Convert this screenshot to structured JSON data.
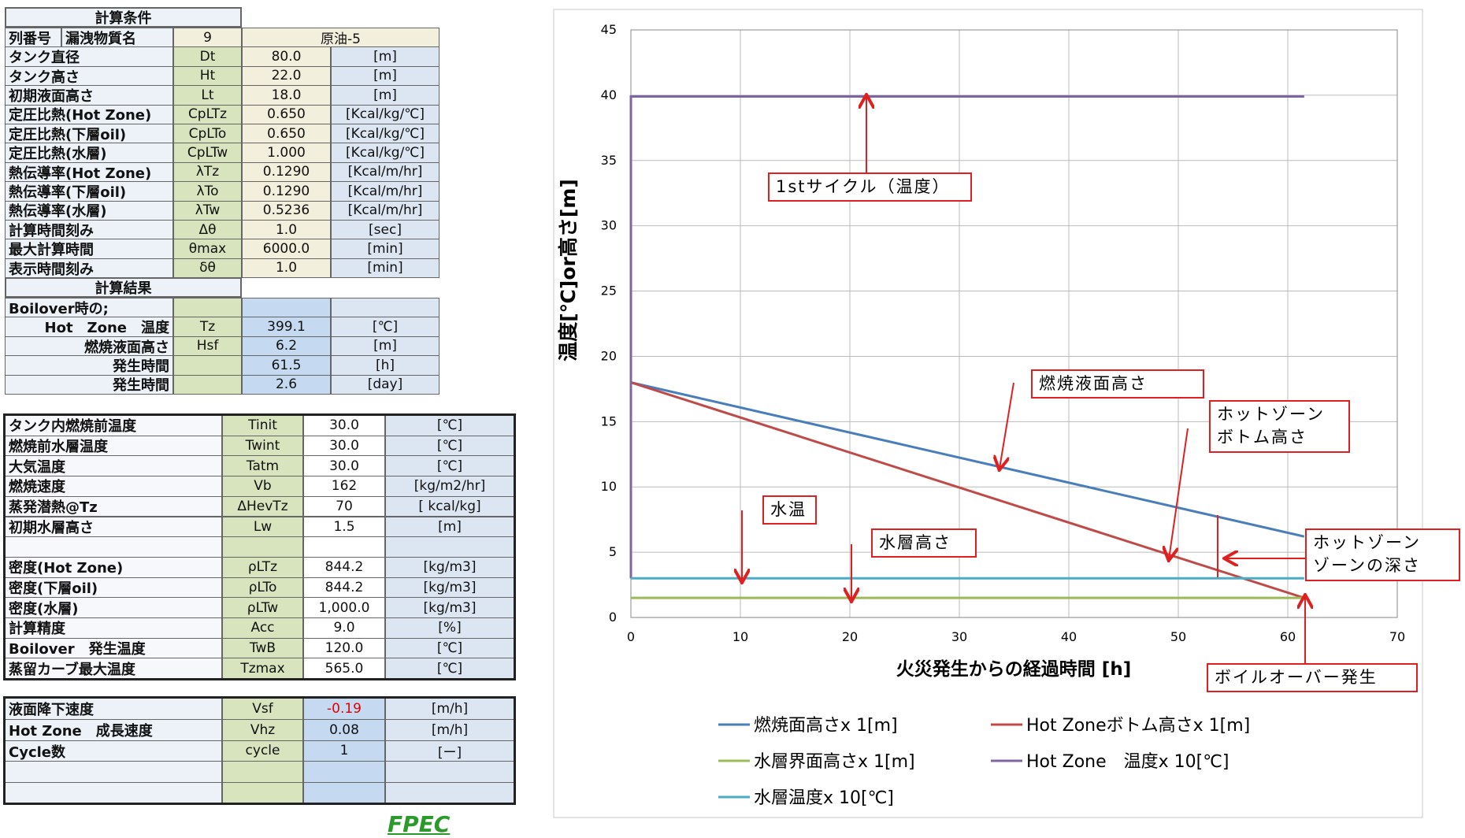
{
  "tables": {
    "conditions": {
      "title": "計算条件",
      "id_row": [
        "列番号",
        "漏洩物質名",
        "9",
        "原油-5"
      ],
      "rows": [
        [
          "タンク直径",
          "Dt",
          "80.0",
          "[m]"
        ],
        [
          "タンク高さ",
          "Ht",
          "22.0",
          "[m]"
        ],
        [
          "初期液面高さ",
          "Lt",
          "18.0",
          "[m]"
        ],
        [
          "定圧比熱(Hot Zone)",
          "CpLTz",
          "0.650",
          "[Kcal/kg/℃]"
        ],
        [
          "定圧比熱(下層oil)",
          "CpLTo",
          "0.650",
          "[Kcal/kg/℃]"
        ],
        [
          "定圧比熱(水層)",
          "CpLTw",
          "1.000",
          "[Kcal/kg/℃]"
        ],
        [
          "熱伝導率(Hot Zone)",
          "λTz",
          "0.1290",
          "[Kcal/m/hr]"
        ],
        [
          "熱伝導率(下層oil)",
          "λTo",
          "0.1290",
          "[Kcal/m/hr]"
        ],
        [
          "熱伝導率(水層)",
          "λTw",
          "0.5236",
          "[Kcal/m/hr]"
        ],
        [
          "計算時間刻み",
          "Δθ",
          "1.0",
          "[sec]"
        ],
        [
          "最大計算時間",
          "θmax",
          "6000.0",
          "[min]"
        ],
        [
          "表示時間刻み",
          "δθ",
          "1.0",
          "[min]"
        ]
      ]
    },
    "results": {
      "title": "計算結果",
      "rows": [
        [
          "Boilover時の;",
          null,
          null,
          null
        ],
        [
          "Hot　Zone　温度",
          "Tz",
          "399.1",
          "[℃]"
        ],
        [
          "燃焼液面高さ",
          "Hsf",
          "6.2",
          "[m]"
        ],
        [
          "発生時間",
          null,
          "61.5",
          "[h]"
        ],
        [
          "発生時間",
          null,
          "2.6",
          "[day]"
        ]
      ]
    },
    "properties": {
      "rows": [
        [
          "タンク内燃焼前温度",
          "Tinit",
          "30.0",
          "[℃]"
        ],
        [
          "燃焼前水層温度",
          "Twint",
          "30.0",
          "[℃]"
        ],
        [
          "大気温度",
          "Tatm",
          "30.0",
          "[℃]"
        ],
        [
          "燃焼速度",
          "Vb",
          "162",
          "[kg/m2/hr]"
        ],
        [
          "蒸発潜熱@Tz",
          "ΔHevTz",
          "70",
          "[ kcal/kg]"
        ],
        [
          "初期水層高さ",
          "Lw",
          "1.5",
          "[m]"
        ],
        [
          null,
          null,
          null,
          null
        ],
        [
          "密度(Hot Zone)",
          "ρLTz",
          "844.2",
          "[kg/m3]"
        ],
        [
          "密度(下層oil)",
          "ρLTo",
          "844.2",
          "[kg/m3]"
        ],
        [
          "密度(水層)",
          "ρLTw",
          "1,000.0",
          "[kg/m3]"
        ],
        [
          "計算精度",
          "Acc",
          "9.0",
          "[%]"
        ],
        [
          "Boilover　発生温度",
          "TwB",
          "120.0",
          "[℃]"
        ],
        [
          "蒸留カーブ最大温度",
          "Tzmax",
          "565.0",
          "[℃]"
        ]
      ]
    },
    "rates": {
      "alert_color": "#e00000",
      "rows": [
        [
          "液面降下速度",
          "Vsf",
          "-0.19",
          "[m/h]"
        ],
        [
          "Hot Zone　成長速度",
          "Vhz",
          "0.08",
          "[m/h]"
        ],
        [
          "Cycle数",
          "cycle",
          "1",
          "[ー]"
        ],
        [
          null,
          null,
          null,
          null
        ],
        [
          null,
          null,
          null,
          null
        ]
      ]
    }
  },
  "logo": "FPEC",
  "chart_data": {
    "type": "line",
    "xlabel": "火災発生からの経過時間 [h]",
    "ylabel": "温度[℃]or高さ[m]",
    "xlim": [
      0,
      70
    ],
    "xticks": [
      0,
      10,
      20,
      30,
      40,
      50,
      60,
      70
    ],
    "ylim": [
      0,
      45
    ],
    "yticks": [
      0,
      5,
      10,
      15,
      20,
      25,
      30,
      35,
      40,
      45
    ],
    "grid": true,
    "series": [
      {
        "name": "燃焼面高さx 1[m]",
        "color": "#4a7ebb",
        "x": [
          0,
          61.5
        ],
        "values": [
          18,
          6.2
        ]
      },
      {
        "name": "Hot Zoneボトム高さx 1[m]",
        "color": "#be4b48",
        "x": [
          0,
          61.5
        ],
        "values": [
          18,
          1.5
        ]
      },
      {
        "name": "水層界面高さx 1[m]",
        "color": "#9bbb59",
        "x": [
          0,
          61.5
        ],
        "values": [
          1.5,
          1.5
        ]
      },
      {
        "name": "Hot Zone　温度x 10[℃]",
        "color": "#8064a2",
        "x": [
          0,
          0,
          61.5
        ],
        "values": [
          3,
          39.9,
          39.9
        ]
      },
      {
        "name": "水層温度x 10[℃]",
        "color": "#4bacc6",
        "x": [
          0,
          61.5
        ],
        "values": [
          3,
          3
        ]
      }
    ],
    "annotations": [
      "1stサイクル（温度）",
      "燃焼液面高さ",
      "ホットゾーン\nボトム高さ",
      "水温",
      "水層高さ",
      "ホットゾーン\nゾーンの深さ",
      "ボイルオーバー発生"
    ]
  }
}
